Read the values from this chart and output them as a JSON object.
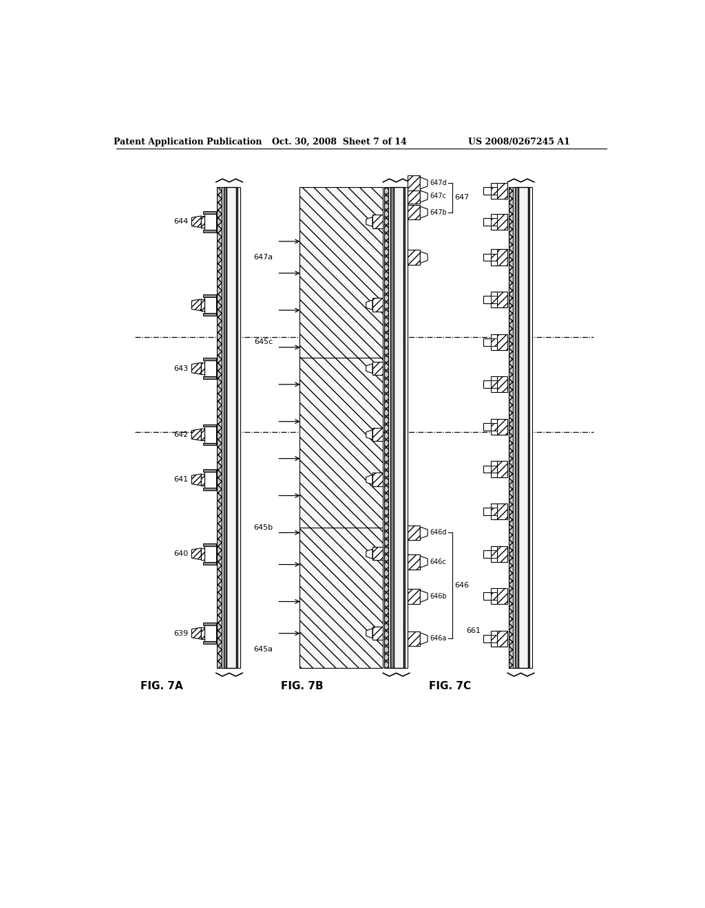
{
  "header_left": "Patent Application Publication",
  "header_center": "Oct. 30, 2008  Sheet 7 of 14",
  "header_right": "US 2008/0267245 A1",
  "fig_labels": [
    "FIG. 7A",
    "FIG. 7B",
    "FIG. 7C"
  ],
  "background_color": "#ffffff",
  "labels_7A": [
    "639",
    "640",
    "641",
    "642",
    "643",
    "644"
  ],
  "labels_7B_left": [
    "645a",
    "645b",
    "645c",
    "647a"
  ],
  "labels_7B_right_bot": [
    "646a",
    "646b",
    "646c",
    "646d",
    "646"
  ],
  "labels_7B_right_top": [
    "647b",
    "647c",
    "647d",
    "647"
  ],
  "labels_7C": [
    "661"
  ]
}
